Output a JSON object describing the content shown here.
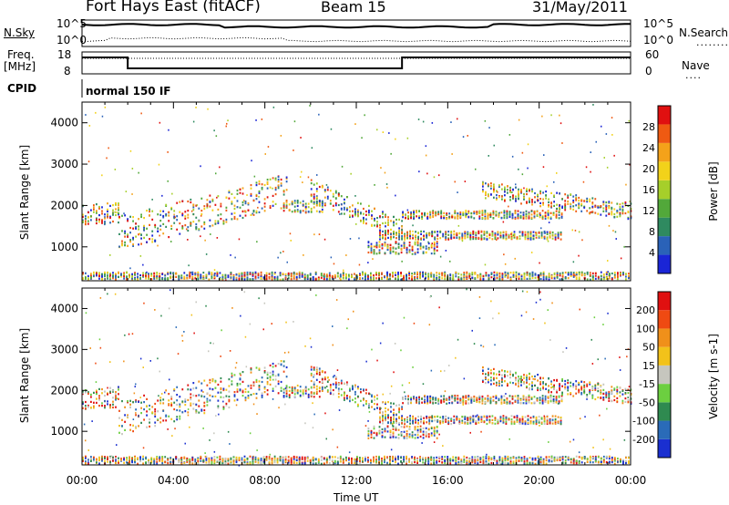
{
  "header": {
    "station": "Fort Hays East (fitACF)",
    "beam": "Beam 15",
    "date": "31/May/2011"
  },
  "noise_panel": {
    "left_label": "N.Sky",
    "right_label": "N.Search",
    "left_ticks": [
      "10^5",
      "10^0"
    ],
    "right_ticks": [
      "10^5",
      "10^0"
    ]
  },
  "freq_panel": {
    "left_label": "Freq.",
    "left_unit": "[MHz]",
    "right_label": "Nave",
    "left_ticks": [
      "18",
      "8"
    ],
    "right_ticks": [
      "60",
      "0"
    ]
  },
  "cpid_panel": {
    "label": "CPID",
    "mode": "normal 150 IF"
  },
  "x_axis": {
    "title": "Time UT",
    "ticks": [
      "00:00",
      "04:00",
      "08:00",
      "12:00",
      "16:00",
      "20:00",
      "00:00"
    ]
  },
  "chart_data": [
    {
      "type": "heatmap",
      "parameter": "Power",
      "ylabel": "Slant Range [km]",
      "yticks": [
        "1000",
        "2000",
        "3000",
        "4000"
      ],
      "ylim": [
        180,
        4500
      ],
      "xlim_hours": [
        0,
        24
      ],
      "colorbar": {
        "label": "Power [dB]",
        "ticks": [
          "4",
          "8",
          "12",
          "16",
          "20",
          "24",
          "28"
        ],
        "colors": [
          "#1a25d6",
          "#2a62b8",
          "#2f8a60",
          "#52a83a",
          "#a6cf2a",
          "#f2d21a",
          "#f4a21a",
          "#ef5a12",
          "#e01010"
        ]
      }
    },
    {
      "type": "heatmap",
      "parameter": "Velocity",
      "ylabel": "Slant Range [km]",
      "yticks": [
        "1000",
        "2000",
        "3000",
        "4000"
      ],
      "ylim": [
        180,
        4500
      ],
      "xlim_hours": [
        0,
        24
      ],
      "colorbar": {
        "label": "Velocity [m s-1]",
        "ticks": [
          "200",
          "100",
          "50",
          "15",
          "-15",
          "-50",
          "-100",
          "-200"
        ],
        "colors": [
          "#1a2fd0",
          "#2a6bb8",
          "#2f8a50",
          "#6ccf40",
          "#c6c6be",
          "#f2c21a",
          "#f0901a",
          "#ef4a12",
          "#e01010"
        ]
      }
    }
  ]
}
